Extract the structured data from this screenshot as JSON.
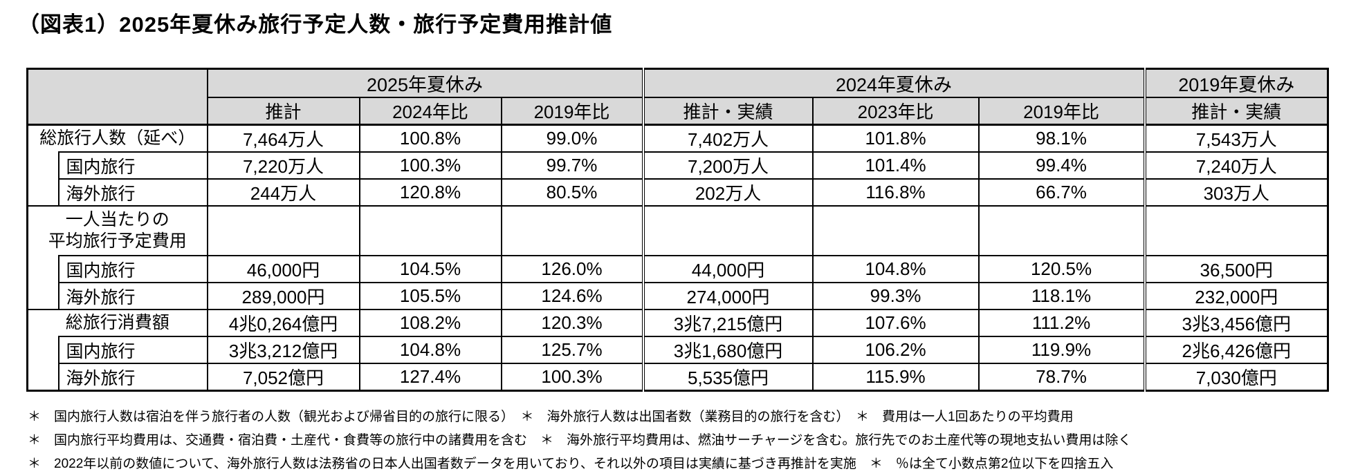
{
  "chart_data": {
    "type": "table",
    "title": "（図表1）2025年夏休み旅行予定人数・旅行予定費用推計値",
    "col_groups": [
      {
        "label": "2025年夏休み",
        "cols": [
          "推計",
          "2024年比",
          "2019年比"
        ]
      },
      {
        "label": "2024年夏休み",
        "cols": [
          "推計・実績",
          "2023年比",
          "2019年比"
        ]
      },
      {
        "label": "2019年夏休み",
        "cols": [
          "推計・実績"
        ]
      }
    ],
    "rows": [
      {
        "label": "総旅行人数（延べ）",
        "indent": false,
        "values": [
          "7,464万人",
          "100.8%",
          "99.0%",
          "7,402万人",
          "101.8%",
          "98.1%",
          "7,543万人"
        ]
      },
      {
        "label": "国内旅行",
        "indent": true,
        "values": [
          "7,220万人",
          "100.3%",
          "99.7%",
          "7,200万人",
          "101.4%",
          "99.4%",
          "7,240万人"
        ]
      },
      {
        "label": "海外旅行",
        "indent": true,
        "values": [
          "244万人",
          "120.8%",
          "80.5%",
          "202万人",
          "116.8%",
          "66.7%",
          "303万人"
        ]
      },
      {
        "label": "一人当たりの\n平均旅行予定費用",
        "indent": false,
        "values": [
          "",
          "",
          "",
          "",
          "",
          "",
          ""
        ]
      },
      {
        "label": "国内旅行",
        "indent": true,
        "values": [
          "46,000円",
          "104.5%",
          "126.0%",
          "44,000円",
          "104.8%",
          "120.5%",
          "36,500円"
        ]
      },
      {
        "label": "海外旅行",
        "indent": true,
        "values": [
          "289,000円",
          "105.5%",
          "124.6%",
          "274,000円",
          "99.3%",
          "118.1%",
          "232,000円"
        ]
      },
      {
        "label": "総旅行消費額",
        "indent": false,
        "values": [
          "4兆0,264億円",
          "108.2%",
          "120.3%",
          "3兆7,215億円",
          "107.6%",
          "111.2%",
          "3兆3,456億円"
        ]
      },
      {
        "label": "国内旅行",
        "indent": true,
        "values": [
          "3兆3,212億円",
          "104.8%",
          "125.7%",
          "3兆1,680億円",
          "106.2%",
          "119.9%",
          "2兆6,426億円"
        ]
      },
      {
        "label": "海外旅行",
        "indent": true,
        "values": [
          "7,052億円",
          "127.4%",
          "100.3%",
          "5,535億円",
          "115.9%",
          "78.7%",
          "7,030億円"
        ]
      }
    ],
    "header_fill_color": "#d9d9d9",
    "border_color": "#000000"
  },
  "footnotes": [
    "＊　国内旅行人数は宿泊を伴う旅行者の人数（観光および帰省目的の旅行に限る）　＊　海外旅行人数は出国者数（業務目的の旅行を含む）　＊　費用は一人1回あたりの平均費用",
    "＊　国内旅行平均費用は、交通費・宿泊費・土産代・食費等の旅行中の諸費用を含む　＊　海外旅行平均費用は、燃油サーチャージを含む。旅行先でのお土産代等の現地支払い費用は除く",
    "＊　2022年以前の数値について、海外旅行人数は法務省の日本人出国者数データを用いており、それ以外の項目は実績に基づき再推計を実施　＊　％は全て小数点第2位以下を四捨五入"
  ]
}
